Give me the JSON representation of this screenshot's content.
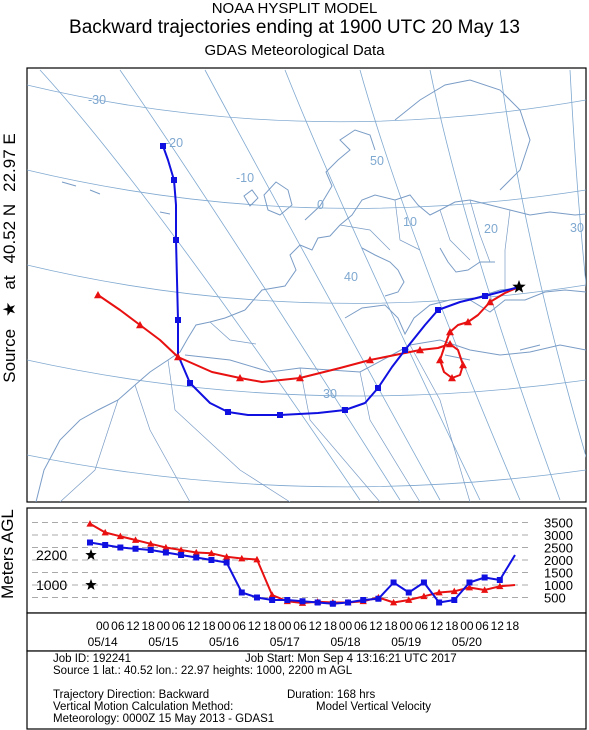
{
  "header": {
    "line1": "NOAA HYSPLIT MODEL",
    "line2": "Backward trajectories ending at 1900 UTC 20 May 13",
    "line3": "GDAS Meteorological Data"
  },
  "source_label": {
    "prefix": "Source",
    "star": "★",
    "at": "at",
    "lat": "40.52 N",
    "lon": "22.97 E"
  },
  "map": {
    "graticule_labels": [
      "-30",
      "-20",
      "-10",
      "0",
      "10",
      "20",
      "30",
      "30",
      "40",
      "50"
    ],
    "colors": {
      "land": "#7a9cc6",
      "graticule": "#7fa8d0",
      "red": "#e81010",
      "blue": "#1010e0"
    }
  },
  "chart_data": {
    "type": "line",
    "title": "",
    "ylabel": "Meters AGL",
    "ylim": [
      0,
      3800
    ],
    "y_ticks_right": [
      "3500",
      "3000",
      "2500",
      "2000",
      "1500",
      "1000",
      "500"
    ],
    "start_heights": [
      "2200",
      "1000"
    ],
    "x_tick_hours": [
      "18",
      "12",
      "06",
      "00",
      "18",
      "12",
      "06",
      "00",
      "18",
      "12",
      "06",
      "00",
      "18",
      "12",
      "06",
      "00",
      "18",
      "12",
      "06",
      "00",
      "18",
      "12",
      "06",
      "00",
      "18",
      "12",
      "06",
      "00"
    ],
    "date_labels": [
      "05/20",
      "05/19",
      "05/18",
      "05/17",
      "05/16",
      "05/15",
      "05/14"
    ],
    "x_unit": "hours back from 1900 UTC 20 May 13",
    "series": [
      {
        "name": "",
        "color": "#e81010",
        "marker": "triangle",
        "x": [
          0,
          6,
          12,
          18,
          24,
          30,
          36,
          42,
          48,
          54,
          60,
          66,
          72,
          78,
          84,
          90,
          96,
          102,
          108,
          114,
          120,
          126,
          132,
          138,
          144,
          150,
          156,
          162,
          168
        ],
        "values": [
          1000,
          950,
          800,
          900,
          750,
          700,
          550,
          400,
          300,
          500,
          350,
          300,
          300,
          330,
          280,
          350,
          600,
          2020,
          2060,
          2130,
          2270,
          2300,
          2400,
          2500,
          2650,
          2800,
          2950,
          3100,
          3450
        ]
      },
      {
        "name": "",
        "color": "#1010e0",
        "marker": "square",
        "x": [
          0,
          6,
          12,
          18,
          24,
          30,
          36,
          42,
          48,
          54,
          60,
          66,
          72,
          78,
          84,
          90,
          96,
          102,
          108,
          114,
          120,
          126,
          132,
          138,
          144,
          150,
          156,
          162,
          168
        ],
        "values": [
          2200,
          1200,
          1300,
          1100,
          400,
          300,
          1100,
          700,
          1100,
          450,
          400,
          300,
          250,
          300,
          350,
          400,
          400,
          500,
          700,
          1900,
          2000,
          2100,
          2200,
          2300,
          2400,
          2450,
          2500,
          2600,
          2700
        ]
      }
    ]
  },
  "info": {
    "job_id": "Job ID: 192241",
    "job_start": "Job Start: Mon Sep  4 13:16:21 UTC 2017",
    "source_line": "Source 1 lat.: 40.52  lon.: 22.97  heights: 1000, 2200 m AGL",
    "direction": "Trajectory Direction: Backward",
    "duration": "Duration: 168 hrs",
    "vertical": "Vertical Motion Calculation Method:",
    "vertical_value": "Model Vertical Velocity",
    "meteorology": "Meteorology: 0000Z 15 May 2013 - GDAS1"
  }
}
